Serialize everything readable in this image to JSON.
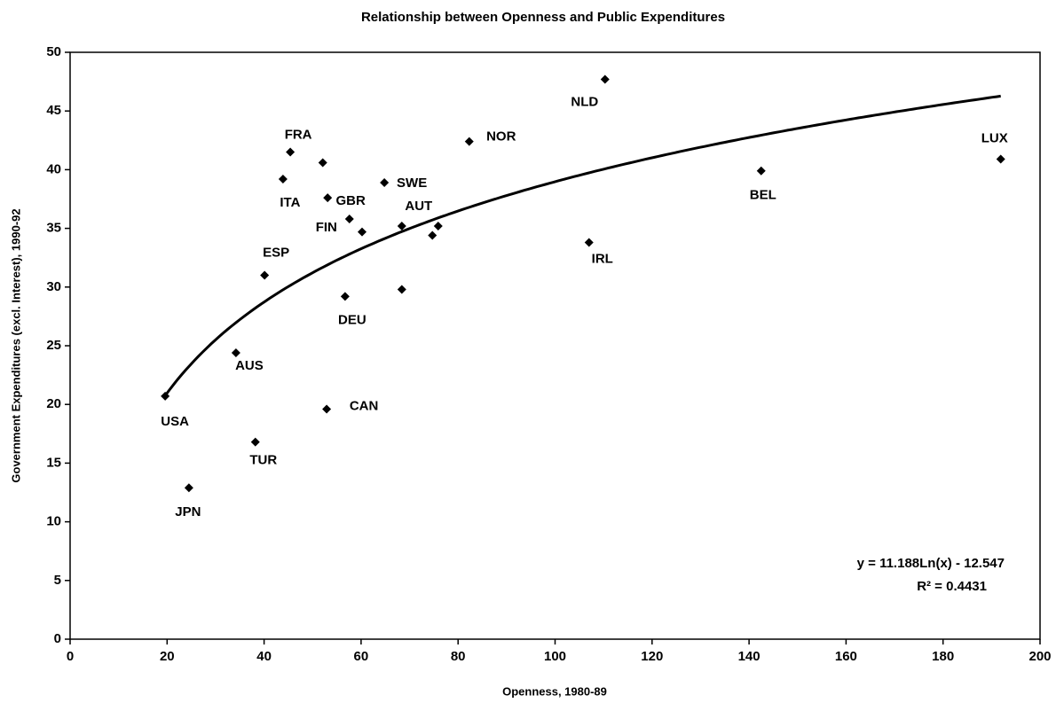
{
  "chart_data": {
    "type": "scatter",
    "title": "Relationship between Openness and Public Expenditures",
    "x_label": "Openness, 1980-89",
    "y_label": "Government Expenditures (excl. Interest), 1990-92",
    "x": [
      19.6,
      24.5,
      34.2,
      38.2,
      40.1,
      43.9,
      45.4,
      52.1,
      52.9,
      53.1,
      56.7,
      57.6,
      60.2,
      64.8,
      68.4,
      68.4,
      74.7,
      75.9,
      82.3,
      107.0,
      110.3,
      142.5,
      191.9
    ],
    "values": [
      20.7,
      12.9,
      24.4,
      16.8,
      31.0,
      39.2,
      41.5,
      40.6,
      19.6,
      37.6,
      29.2,
      35.8,
      34.7,
      38.9,
      35.2,
      29.8,
      34.4,
      35.2,
      42.4,
      33.8,
      47.7,
      39.9,
      40.9
    ],
    "labels": [
      "USA",
      "JPN",
      "AUS",
      "TUR",
      "ESP",
      "ITA",
      "FRA",
      null,
      "CAN",
      "GBR",
      "DEU",
      "FIN",
      null,
      "SWE",
      "AUT",
      null,
      null,
      null,
      "NOR",
      "IRL",
      "NLD",
      "BEL",
      "LUX"
    ],
    "color": "#000000",
    "xlim": [
      0,
      200
    ],
    "xticks": [
      0,
      20,
      40,
      60,
      80,
      100,
      120,
      140,
      160,
      180,
      200
    ],
    "ylim": [
      0,
      50
    ],
    "yticks": [
      0,
      5,
      10,
      15,
      20,
      25,
      30,
      35,
      40,
      45,
      50
    ],
    "grid": false,
    "trendline": {
      "type": "log",
      "a": 11.188,
      "b": -12.547,
      "label": "y = 11.188Ln(x) - 12.547",
      "r2_label": "R² = 0.4431"
    }
  }
}
